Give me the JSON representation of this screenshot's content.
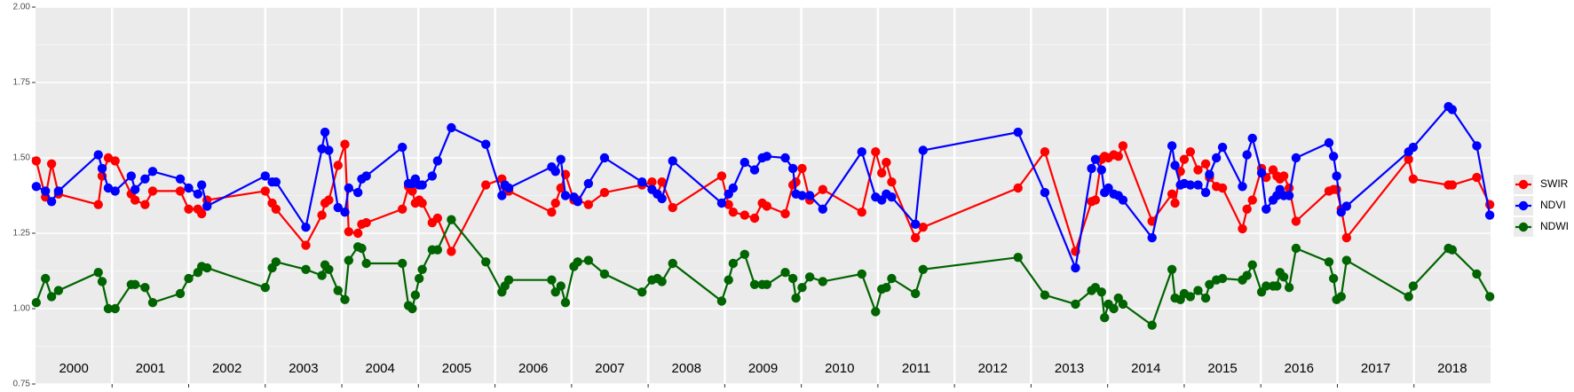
{
  "chart_data": {
    "type": "line",
    "x": [
      2000.01,
      2000.13,
      2000.21,
      2000.3,
      2000.82,
      2000.87,
      2000.95,
      2001.04,
      2001.25,
      2001.3,
      2001.43,
      2001.53,
      2001.89,
      2002.0,
      2002.12,
      2002.17,
      2002.24,
      2003.0,
      2003.09,
      2003.14,
      2003.53,
      2003.74,
      2003.78,
      2003.83,
      2003.95,
      2004.04,
      2004.09,
      2004.21,
      2004.26,
      2004.32,
      2004.79,
      2004.87,
      2004.92,
      2004.96,
      2005.01,
      2005.05,
      2005.18,
      2005.25,
      2005.43,
      2005.88,
      2006.09,
      2006.13,
      2006.18,
      2006.74,
      2006.79,
      2006.86,
      2006.92,
      2007.03,
      2007.08,
      2007.22,
      2007.43,
      2007.92,
      2008.05,
      2008.12,
      2008.18,
      2008.32,
      2008.96,
      2009.05,
      2009.11,
      2009.26,
      2009.39,
      2009.49,
      2009.55,
      2009.79,
      2009.89,
      2009.93,
      2010.01,
      2010.11,
      2010.28,
      2010.79,
      2010.97,
      2011.05,
      2011.11,
      2011.18,
      2011.49,
      2011.59,
      2012.83,
      2013.18,
      2013.58,
      2013.79,
      2013.84,
      2013.92,
      2013.96,
      2014.01,
      2014.08,
      2014.14,
      2014.2,
      2014.58,
      2014.84,
      2014.88,
      2014.95,
      2015.0,
      2015.08,
      2015.18,
      2015.28,
      2015.33,
      2015.42,
      2015.5,
      2015.76,
      2015.82,
      2015.89,
      2016.01,
      2016.07,
      2016.16,
      2016.21,
      2016.25,
      2016.3,
      2016.37,
      2016.46,
      2016.89,
      2016.95,
      2016.99,
      2017.05,
      2017.12,
      2017.93,
      2017.99,
      2018.45,
      2018.5,
      2018.82,
      2018.99
    ],
    "series": [
      {
        "name": "SWIR",
        "color": "#ff0000",
        "values": [
          1.49,
          1.37,
          1.48,
          1.38,
          1.345,
          1.44,
          1.5,
          1.49,
          1.38,
          1.36,
          1.345,
          1.39,
          1.39,
          1.33,
          1.33,
          1.315,
          1.36,
          1.39,
          1.35,
          1.33,
          1.21,
          1.31,
          1.35,
          1.36,
          1.475,
          1.545,
          1.255,
          1.25,
          1.28,
          1.285,
          1.33,
          1.405,
          1.39,
          1.35,
          1.36,
          1.35,
          1.285,
          1.3,
          1.19,
          1.41,
          1.43,
          1.405,
          1.39,
          1.32,
          1.35,
          1.4,
          1.445,
          1.36,
          1.36,
          1.345,
          1.385,
          1.41,
          1.42,
          1.38,
          1.42,
          1.335,
          1.44,
          1.345,
          1.32,
          1.31,
          1.3,
          1.35,
          1.34,
          1.315,
          1.41,
          1.42,
          1.465,
          1.36,
          1.395,
          1.32,
          1.52,
          1.45,
          1.485,
          1.42,
          1.235,
          1.27,
          1.4,
          1.52,
          1.19,
          1.355,
          1.36,
          1.495,
          1.505,
          1.5,
          1.51,
          1.505,
          1.54,
          1.29,
          1.38,
          1.35,
          1.455,
          1.495,
          1.52,
          1.46,
          1.48,
          1.435,
          1.405,
          1.4,
          1.265,
          1.33,
          1.36,
          1.465,
          1.435,
          1.46,
          1.44,
          1.43,
          1.44,
          1.4,
          1.29,
          1.39,
          1.395,
          1.395,
          1.33,
          1.235,
          1.495,
          1.43,
          1.41,
          1.41,
          1.435,
          1.345
        ]
      },
      {
        "name": "NDVI",
        "color": "#0000ff",
        "values": [
          1.405,
          1.39,
          1.355,
          1.39,
          1.51,
          1.465,
          1.4,
          1.39,
          1.44,
          1.395,
          1.43,
          1.455,
          1.43,
          1.4,
          1.38,
          1.41,
          1.34,
          1.44,
          1.42,
          1.42,
          1.27,
          1.53,
          1.585,
          1.525,
          1.335,
          1.32,
          1.4,
          1.385,
          1.43,
          1.44,
          1.535,
          1.415,
          1.415,
          1.43,
          1.41,
          1.41,
          1.44,
          1.49,
          1.6,
          1.545,
          1.375,
          1.41,
          1.4,
          1.47,
          1.455,
          1.495,
          1.375,
          1.37,
          1.355,
          1.415,
          1.5,
          1.42,
          1.395,
          1.38,
          1.365,
          1.49,
          1.35,
          1.38,
          1.4,
          1.485,
          1.46,
          1.5,
          1.505,
          1.5,
          1.465,
          1.38,
          1.375,
          1.375,
          1.33,
          1.52,
          1.37,
          1.36,
          1.38,
          1.37,
          1.28,
          1.525,
          1.585,
          1.385,
          1.135,
          1.465,
          1.495,
          1.46,
          1.385,
          1.4,
          1.38,
          1.375,
          1.36,
          1.235,
          1.54,
          1.475,
          1.41,
          1.415,
          1.41,
          1.41,
          1.385,
          1.445,
          1.5,
          1.535,
          1.405,
          1.51,
          1.565,
          1.45,
          1.33,
          1.36,
          1.375,
          1.395,
          1.375,
          1.375,
          1.5,
          1.55,
          1.505,
          1.44,
          1.32,
          1.34,
          1.52,
          1.535,
          1.67,
          1.66,
          1.54,
          1.31
        ]
      },
      {
        "name": "NDWI",
        "color": "#006400",
        "values": [
          1.02,
          1.1,
          1.04,
          1.06,
          1.12,
          1.09,
          1.0,
          1.0,
          1.08,
          1.08,
          1.07,
          1.02,
          1.05,
          1.1,
          1.12,
          1.14,
          1.135,
          1.07,
          1.135,
          1.155,
          1.13,
          1.11,
          1.145,
          1.13,
          1.06,
          1.03,
          1.16,
          1.205,
          1.2,
          1.15,
          1.15,
          1.01,
          1.0,
          1.045,
          1.1,
          1.13,
          1.195,
          1.195,
          1.295,
          1.155,
          1.055,
          1.075,
          1.095,
          1.095,
          1.055,
          1.075,
          1.02,
          1.14,
          1.155,
          1.16,
          1.115,
          1.055,
          1.095,
          1.1,
          1.09,
          1.15,
          1.025,
          1.095,
          1.15,
          1.18,
          1.08,
          1.08,
          1.08,
          1.12,
          1.1,
          1.035,
          1.07,
          1.105,
          1.09,
          1.115,
          0.99,
          1.065,
          1.07,
          1.1,
          1.05,
          1.13,
          1.17,
          1.045,
          1.015,
          1.06,
          1.07,
          1.055,
          0.97,
          1.015,
          1.0,
          1.035,
          1.015,
          0.945,
          1.13,
          1.035,
          1.03,
          1.05,
          1.04,
          1.06,
          1.035,
          1.08,
          1.095,
          1.1,
          1.095,
          1.11,
          1.145,
          1.055,
          1.075,
          1.075,
          1.075,
          1.12,
          1.105,
          1.07,
          1.2,
          1.155,
          1.1,
          1.03,
          1.04,
          1.16,
          1.04,
          1.075,
          1.2,
          1.195,
          1.115,
          1.04
        ]
      }
    ],
    "xlim": [
      2000,
      2019
    ],
    "xticks": [
      2001,
      2002,
      2003,
      2004,
      2005,
      2006,
      2007,
      2008,
      2009,
      2010,
      2011,
      2012,
      2013,
      2014,
      2015,
      2016,
      2017,
      2018
    ],
    "year_labels": [
      {
        "value": 2000.5,
        "label": "2000"
      },
      {
        "value": 2001.5,
        "label": "2001"
      },
      {
        "value": 2002.5,
        "label": "2002"
      },
      {
        "value": 2003.5,
        "label": "2003"
      },
      {
        "value": 2004.5,
        "label": "2004"
      },
      {
        "value": 2005.5,
        "label": "2005"
      },
      {
        "value": 2006.5,
        "label": "2006"
      },
      {
        "value": 2007.5,
        "label": "2007"
      },
      {
        "value": 2008.5,
        "label": "2008"
      },
      {
        "value": 2009.5,
        "label": "2009"
      },
      {
        "value": 2010.5,
        "label": "2010"
      },
      {
        "value": 2011.5,
        "label": "2011"
      },
      {
        "value": 2012.5,
        "label": "2012"
      },
      {
        "value": 2013.5,
        "label": "2013"
      },
      {
        "value": 2014.5,
        "label": "2014"
      },
      {
        "value": 2015.5,
        "label": "2015"
      },
      {
        "value": 2016.5,
        "label": "2016"
      },
      {
        "value": 2017.5,
        "label": "2017"
      },
      {
        "value": 2018.5,
        "label": "2018"
      }
    ],
    "ylim": [
      0.75,
      2.0
    ],
    "yticks": [
      {
        "value": 0.75,
        "label": "0.75"
      },
      {
        "value": 1.0,
        "label": "1.00"
      },
      {
        "value": 1.25,
        "label": "1.25"
      },
      {
        "value": 1.5,
        "label": "1.50"
      },
      {
        "value": 1.75,
        "label": "1.75"
      },
      {
        "value": 2.0,
        "label": "2.00"
      }
    ],
    "grid": true,
    "legend": "right"
  }
}
